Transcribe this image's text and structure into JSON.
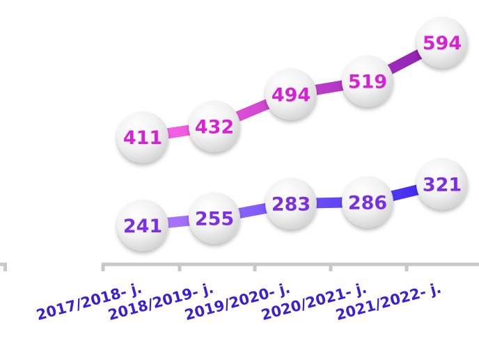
{
  "chart_data": {
    "type": "line",
    "categories": [
      "2017/2018- j.",
      "2018/2019- j.",
      "2019/2020- j.",
      "2020/2021- j.",
      "2021/2022- j."
    ],
    "series": [
      {
        "values": [
          411,
          432,
          494,
          519,
          594
        ]
      },
      {
        "values": [
          241,
          255,
          283,
          286,
          321
        ]
      }
    ],
    "data_labels": true,
    "grid": false,
    "colors": {
      "series1_start": "#ff66e8",
      "series1_end": "#8a1fb0",
      "series1_label": "#d621d6",
      "series2_start": "#b07cff",
      "series2_end": "#3a28f0",
      "series2_label": "#7a2ee6",
      "axis": "#c8c8c8",
      "tick_label": "#3a1fd6"
    }
  }
}
